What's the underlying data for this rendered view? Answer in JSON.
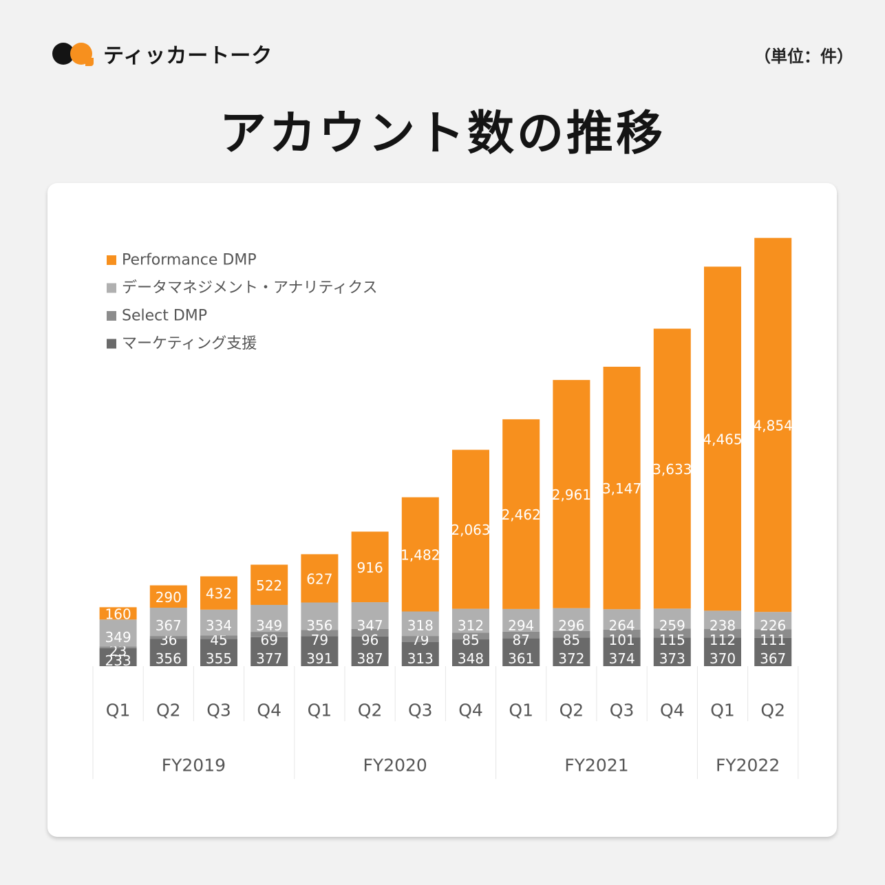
{
  "brand": {
    "name": "ティッカートーク"
  },
  "unit_label": "（単位：件）",
  "title": "アカウント数の推移",
  "colors": {
    "performance": "#f7901e",
    "data_mgmt": "#b0b0b0",
    "select": "#8c8c8c",
    "marketing": "#6a6a6a",
    "background": "#f2f2f2"
  },
  "chart_data": {
    "type": "bar",
    "stacked": true,
    "legend": "top-left",
    "categories": [
      "Q1",
      "Q2",
      "Q3",
      "Q4",
      "Q1",
      "Q2",
      "Q3",
      "Q4",
      "Q1",
      "Q2",
      "Q3",
      "Q4",
      "Q1",
      "Q2"
    ],
    "groups": [
      {
        "label": "FY2019",
        "count": 4
      },
      {
        "label": "FY2020",
        "count": 4
      },
      {
        "label": "FY2021",
        "count": 4
      },
      {
        "label": "FY2022",
        "count": 2
      }
    ],
    "series": [
      {
        "name": "マーケティング支援",
        "color": "#6a6a6a",
        "values": [
          233,
          356,
          355,
          377,
          391,
          387,
          313,
          348,
          361,
          372,
          374,
          373,
          370,
          367
        ]
      },
      {
        "name": "Select DMP",
        "color": "#8c8c8c",
        "values": [
          23,
          36,
          45,
          69,
          79,
          96,
          79,
          85,
          87,
          85,
          101,
          115,
          112,
          111
        ]
      },
      {
        "name": "データマネジメント・アナリティクス",
        "color": "#b0b0b0",
        "values": [
          349,
          367,
          334,
          349,
          356,
          347,
          318,
          312,
          294,
          296,
          264,
          259,
          238,
          226
        ]
      },
      {
        "name": "Performance DMP",
        "color": "#f7901e",
        "values": [
          160,
          290,
          432,
          522,
          627,
          916,
          1482,
          2063,
          2462,
          2961,
          3147,
          3633,
          4465,
          4854
        ]
      }
    ],
    "legend_order": [
      "Performance DMP",
      "データマネジメント・アナリティクス",
      "Select DMP",
      "マーケティング支援"
    ],
    "ylim": [
      0,
      5600
    ]
  }
}
